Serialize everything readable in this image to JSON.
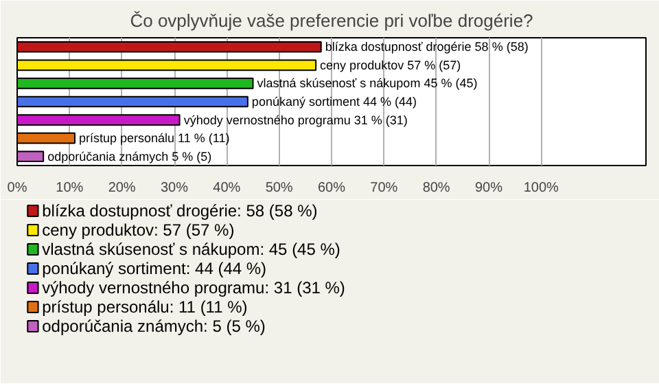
{
  "chart_data": {
    "type": "bar",
    "orientation": "horizontal",
    "title": "Čo ovplyvňuje vaše preferencie pri voľbe drogérie?",
    "categories": [
      "blízka dostupnosť drogérie",
      "ceny produktov",
      "vlastná skúsenosť s nákupom",
      "ponúkaný sortiment",
      "výhody vernostného programu",
      "prístup personálu",
      "odporúčania známych"
    ],
    "series": [
      {
        "name": "blízka dostupnosť drogérie: 58 (58 %)",
        "color": "#c01818",
        "values": [
          58,
          null,
          null,
          null,
          null,
          null,
          null
        ],
        "value_labels": [
          "58 % (58)",
          null,
          null,
          null,
          null,
          null,
          null
        ]
      },
      {
        "name": "ceny produktov: 57 (57 %)",
        "color": "#ffe800",
        "values": [
          null,
          57,
          null,
          null,
          null,
          null,
          null
        ],
        "value_labels": [
          null,
          "57 % (57)",
          null,
          null,
          null,
          null,
          null
        ]
      },
      {
        "name": "vlastná skúsenosť s nákupom: 45 (45 %)",
        "color": "#20b820",
        "values": [
          null,
          null,
          45,
          null,
          null,
          null,
          null
        ],
        "value_labels": [
          null,
          null,
          "45 % (45)",
          null,
          null,
          null,
          null
        ]
      },
      {
        "name": "ponúkaný sortiment: 44 (44 %)",
        "color": "#4870e8",
        "values": [
          null,
          null,
          null,
          44,
          null,
          null,
          null
        ],
        "value_labels": [
          null,
          null,
          null,
          "44 % (44)",
          null,
          null,
          null
        ]
      },
      {
        "name": "výhody vernostného programu: 31 (31 %)",
        "color": "#c818c8",
        "values": [
          null,
          null,
          null,
          null,
          31,
          null,
          null
        ],
        "value_labels": [
          null,
          null,
          null,
          null,
          "31 % (31)",
          null,
          null
        ]
      },
      {
        "name": "prístup personálu: 11 (11 %)",
        "color": "#e07010",
        "values": [
          null,
          null,
          null,
          null,
          null,
          11,
          null
        ],
        "value_labels": [
          null,
          null,
          null,
          null,
          null,
          "11 % (11)",
          null
        ]
      },
      {
        "name": "odporúčania známych: 5 (5 %)",
        "color": "#c060c0",
        "values": [
          null,
          null,
          null,
          null,
          null,
          null,
          5
        ],
        "value_labels": [
          null,
          null,
          null,
          null,
          null,
          null,
          "5 % (5)"
        ]
      }
    ],
    "xlim": [
      0,
      120
    ],
    "xticks": [
      {
        "value": 0,
        "label": "0%"
      },
      {
        "value": 10,
        "label": "10%"
      },
      {
        "value": 20,
        "label": "20%"
      },
      {
        "value": 30,
        "label": "30%"
      },
      {
        "value": 40,
        "label": "40%"
      },
      {
        "value": 50,
        "label": "50%"
      },
      {
        "value": 60,
        "label": "60%"
      },
      {
        "value": 70,
        "label": "70%"
      },
      {
        "value": 80,
        "label": "80%"
      },
      {
        "value": 90,
        "label": "90%"
      },
      {
        "value": 100,
        "label": "100%"
      }
    ],
    "grid": "x",
    "legend": "bottom"
  }
}
